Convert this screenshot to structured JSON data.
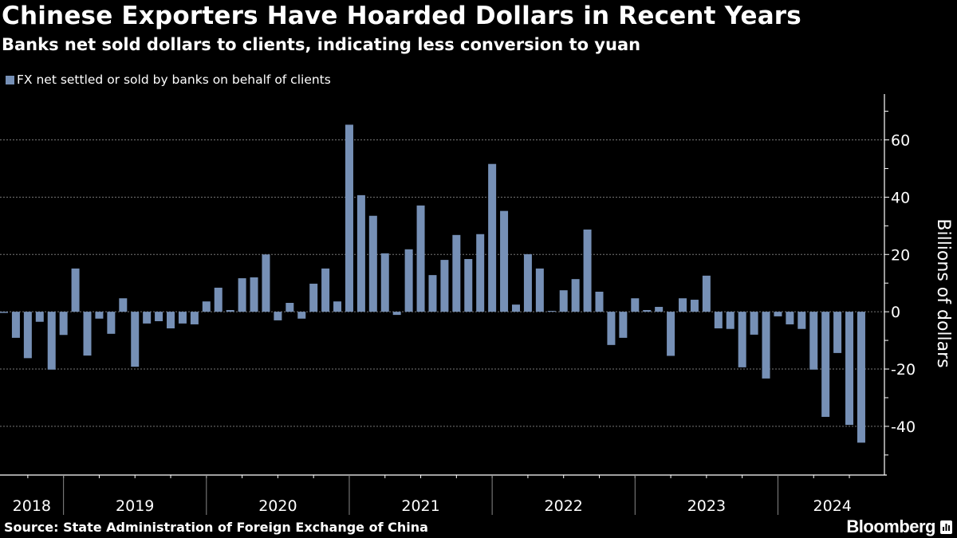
{
  "title": "Chinese Exporters Have Hoarded Dollars in Recent Years",
  "subtitle": "Banks net sold dollars to clients, indicating less conversion to yuan",
  "source": "Source: State Administration of Foreign Exchange of China",
  "brand": "Bloomberg",
  "chart_data": {
    "type": "bar",
    "title": "Chinese Exporters Have Hoarded Dollars in Recent Years",
    "ylabel": "Billions of dollars",
    "xlabel": "",
    "legend_position": "top-left",
    "grid": true,
    "bar_color": "#7690b6",
    "ylim": [
      -57,
      76
    ],
    "yticks": [
      -40,
      -20,
      0,
      20,
      40,
      60
    ],
    "year_labels": [
      "2018",
      "2019",
      "2020",
      "2021",
      "2022",
      "2023",
      "2024"
    ],
    "series": [
      {
        "name": "FX net settled or sold by banks on behalf of clients",
        "x": [
          "2018-08",
          "2018-09",
          "2018-10",
          "2018-11",
          "2018-12",
          "2019-01",
          "2019-02",
          "2019-03",
          "2019-04",
          "2019-05",
          "2019-06",
          "2019-07",
          "2019-08",
          "2019-09",
          "2019-10",
          "2019-11",
          "2019-12",
          "2020-01",
          "2020-02",
          "2020-03",
          "2020-04",
          "2020-05",
          "2020-06",
          "2020-07",
          "2020-08",
          "2020-09",
          "2020-10",
          "2020-11",
          "2020-12",
          "2021-01",
          "2021-02",
          "2021-03",
          "2021-04",
          "2021-05",
          "2021-06",
          "2021-07",
          "2021-08",
          "2021-09",
          "2021-10",
          "2021-11",
          "2021-12",
          "2022-01",
          "2022-02",
          "2022-03",
          "2022-04",
          "2022-05",
          "2022-06",
          "2022-07",
          "2022-08",
          "2022-09",
          "2022-10",
          "2022-11",
          "2022-12",
          "2023-01",
          "2023-02",
          "2023-03",
          "2023-04",
          "2023-05",
          "2023-06",
          "2023-07",
          "2023-08",
          "2023-09",
          "2023-10",
          "2023-11",
          "2023-12",
          "2024-01",
          "2024-02",
          "2024-03",
          "2024-04",
          "2024-05",
          "2024-06",
          "2024-07",
          "2024-08"
        ],
        "values": [
          -0.4,
          -9.1,
          -16.2,
          -3.5,
          -20.2,
          -8.1,
          15.1,
          -15.3,
          -2.4,
          -7.7,
          4.7,
          -19.2,
          -4.1,
          -3.3,
          -5.8,
          -4.1,
          -4.4,
          3.6,
          8.4,
          0.6,
          11.7,
          12.0,
          20.0,
          -3.0,
          3.1,
          -2.4,
          9.8,
          15.1,
          3.6,
          65.3,
          40.7,
          33.5,
          20.4,
          -1.1,
          21.8,
          37.1,
          12.8,
          18.1,
          26.8,
          18.4,
          27.1,
          51.6,
          35.2,
          2.5,
          20.1,
          15.1,
          0.3,
          7.5,
          11.4,
          28.7,
          7.0,
          -11.6,
          -9.1,
          4.7,
          0.6,
          1.7,
          -15.4,
          4.7,
          4.2,
          12.6,
          -5.8,
          -6.0,
          -19.4,
          -8.0,
          -23.3,
          -1.6,
          -4.4,
          -6.0,
          -20.2,
          -36.7,
          -14.4,
          -39.5,
          -45.7
        ]
      }
    ]
  }
}
